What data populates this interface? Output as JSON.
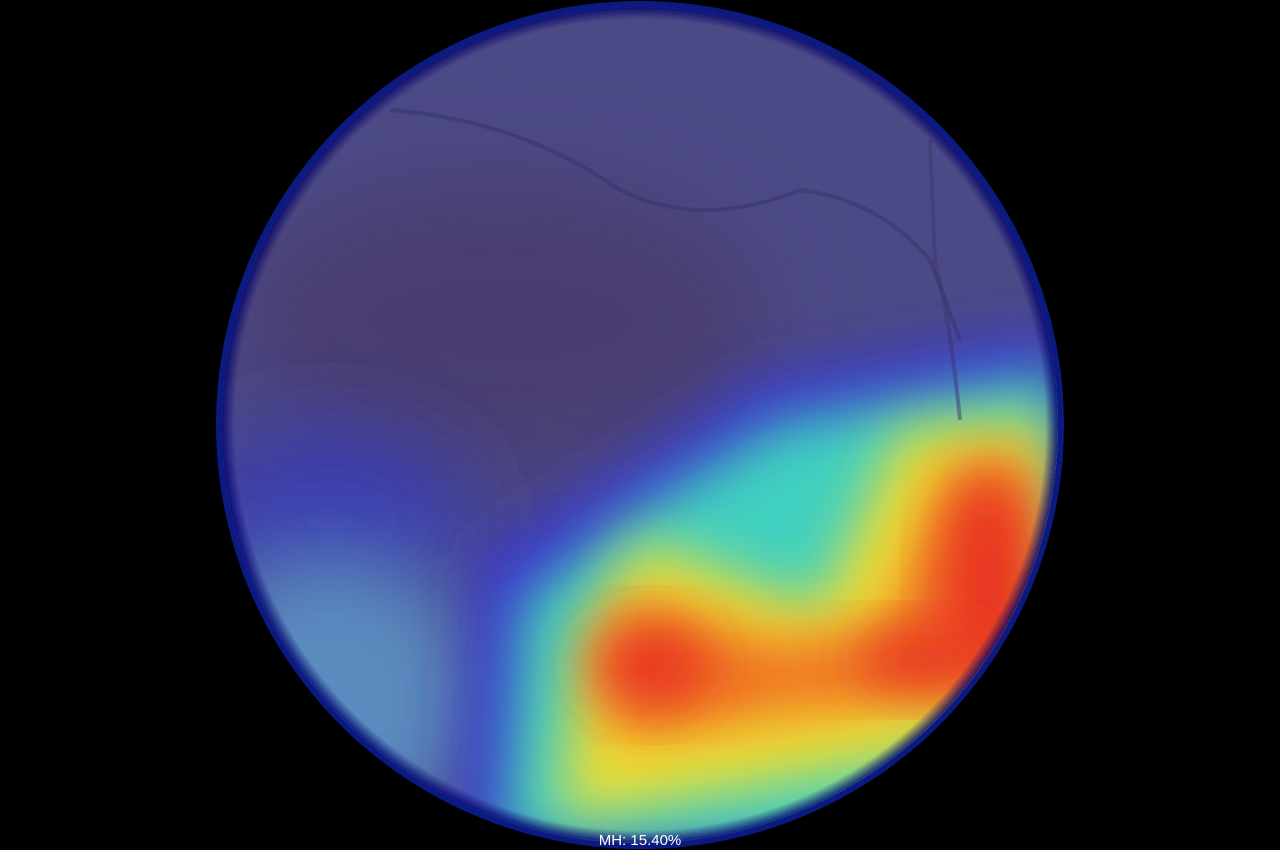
{
  "label": "MH: 15.40%"
}
